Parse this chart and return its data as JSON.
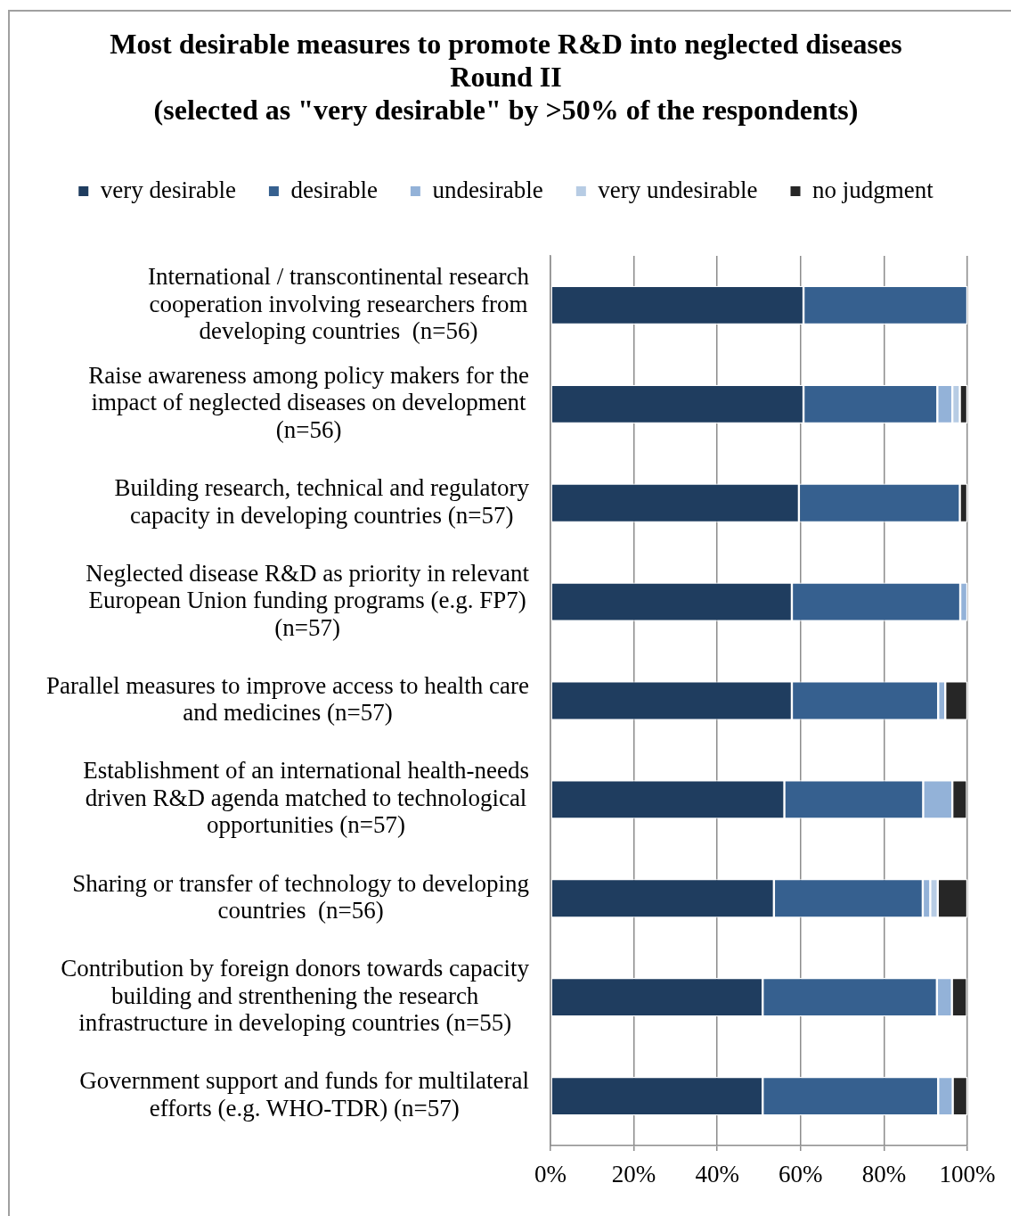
{
  "chart_data": {
    "type": "bar",
    "orientation": "horizontal",
    "stacked": true,
    "title": "Most desirable measures to promote R&D into neglected diseases\nRound II\n(selected as \"very desirable\" by >50% of the respondents)",
    "categories": [
      "International / transcontinental research\ncooperation involving researchers from\ndeveloping countries  (n=56)",
      "Raise awareness among policy makers for the\nimpact of neglected diseases on development\n(n=56)",
      "Building research, technical and regulatory\ncapacity in developing countries (n=57)",
      "Neglected disease R&D as priority in relevant\nEuropean Union funding programs (e.g. FP7)\n(n=57)",
      "Parallel measures to improve access to health care\nand medicines (n=57)",
      "Establishment of an international health-needs\ndriven R&D agenda matched to technological\nopportunities (n=57)",
      "Sharing or transfer of technology to developing\ncountries  (n=56)",
      "Contribution by foreign donors towards capacity\nbuilding and strenthening the research\ninfrastructure in developing countries (n=55)",
      "Government support and funds for multilateral\nefforts (e.g. WHO-TDR) (n=57)"
    ],
    "series": [
      {
        "name": "very desirable",
        "color": "#1f3d5f",
        "values": [
          60.7,
          60.7,
          59.6,
          57.9,
          57.9,
          56.1,
          53.6,
          50.9,
          50.9
        ]
      },
      {
        "name": "desirable",
        "color": "#36608f",
        "values": [
          39.3,
          32.1,
          38.6,
          40.4,
          35.1,
          33.3,
          35.7,
          41.8,
          42.1
        ]
      },
      {
        "name": "undesirable",
        "color": "#93b2d8",
        "values": [
          null,
          3.6,
          null,
          1.7,
          1.7,
          7.0,
          1.8,
          3.6,
          3.5
        ]
      },
      {
        "name": "very undesirable",
        "color": "#b7cce4",
        "values": [
          null,
          1.8,
          null,
          null,
          null,
          null,
          1.8,
          null,
          null
        ]
      },
      {
        "name": "no judgment",
        "color": "#262626",
        "values": [
          null,
          1.8,
          1.8,
          null,
          5.3,
          3.5,
          7.1,
          3.6,
          3.5
        ]
      }
    ],
    "xlim": [
      0,
      100
    ],
    "xticks": [
      {
        "value": 0,
        "label": "0%"
      },
      {
        "value": 20,
        "label": "20%"
      },
      {
        "value": 40,
        "label": "40%"
      },
      {
        "value": 60,
        "label": "60%"
      },
      {
        "value": 80,
        "label": "80%"
      },
      {
        "value": 100,
        "label": "100%"
      }
    ],
    "grid": "x",
    "legend": "top"
  }
}
